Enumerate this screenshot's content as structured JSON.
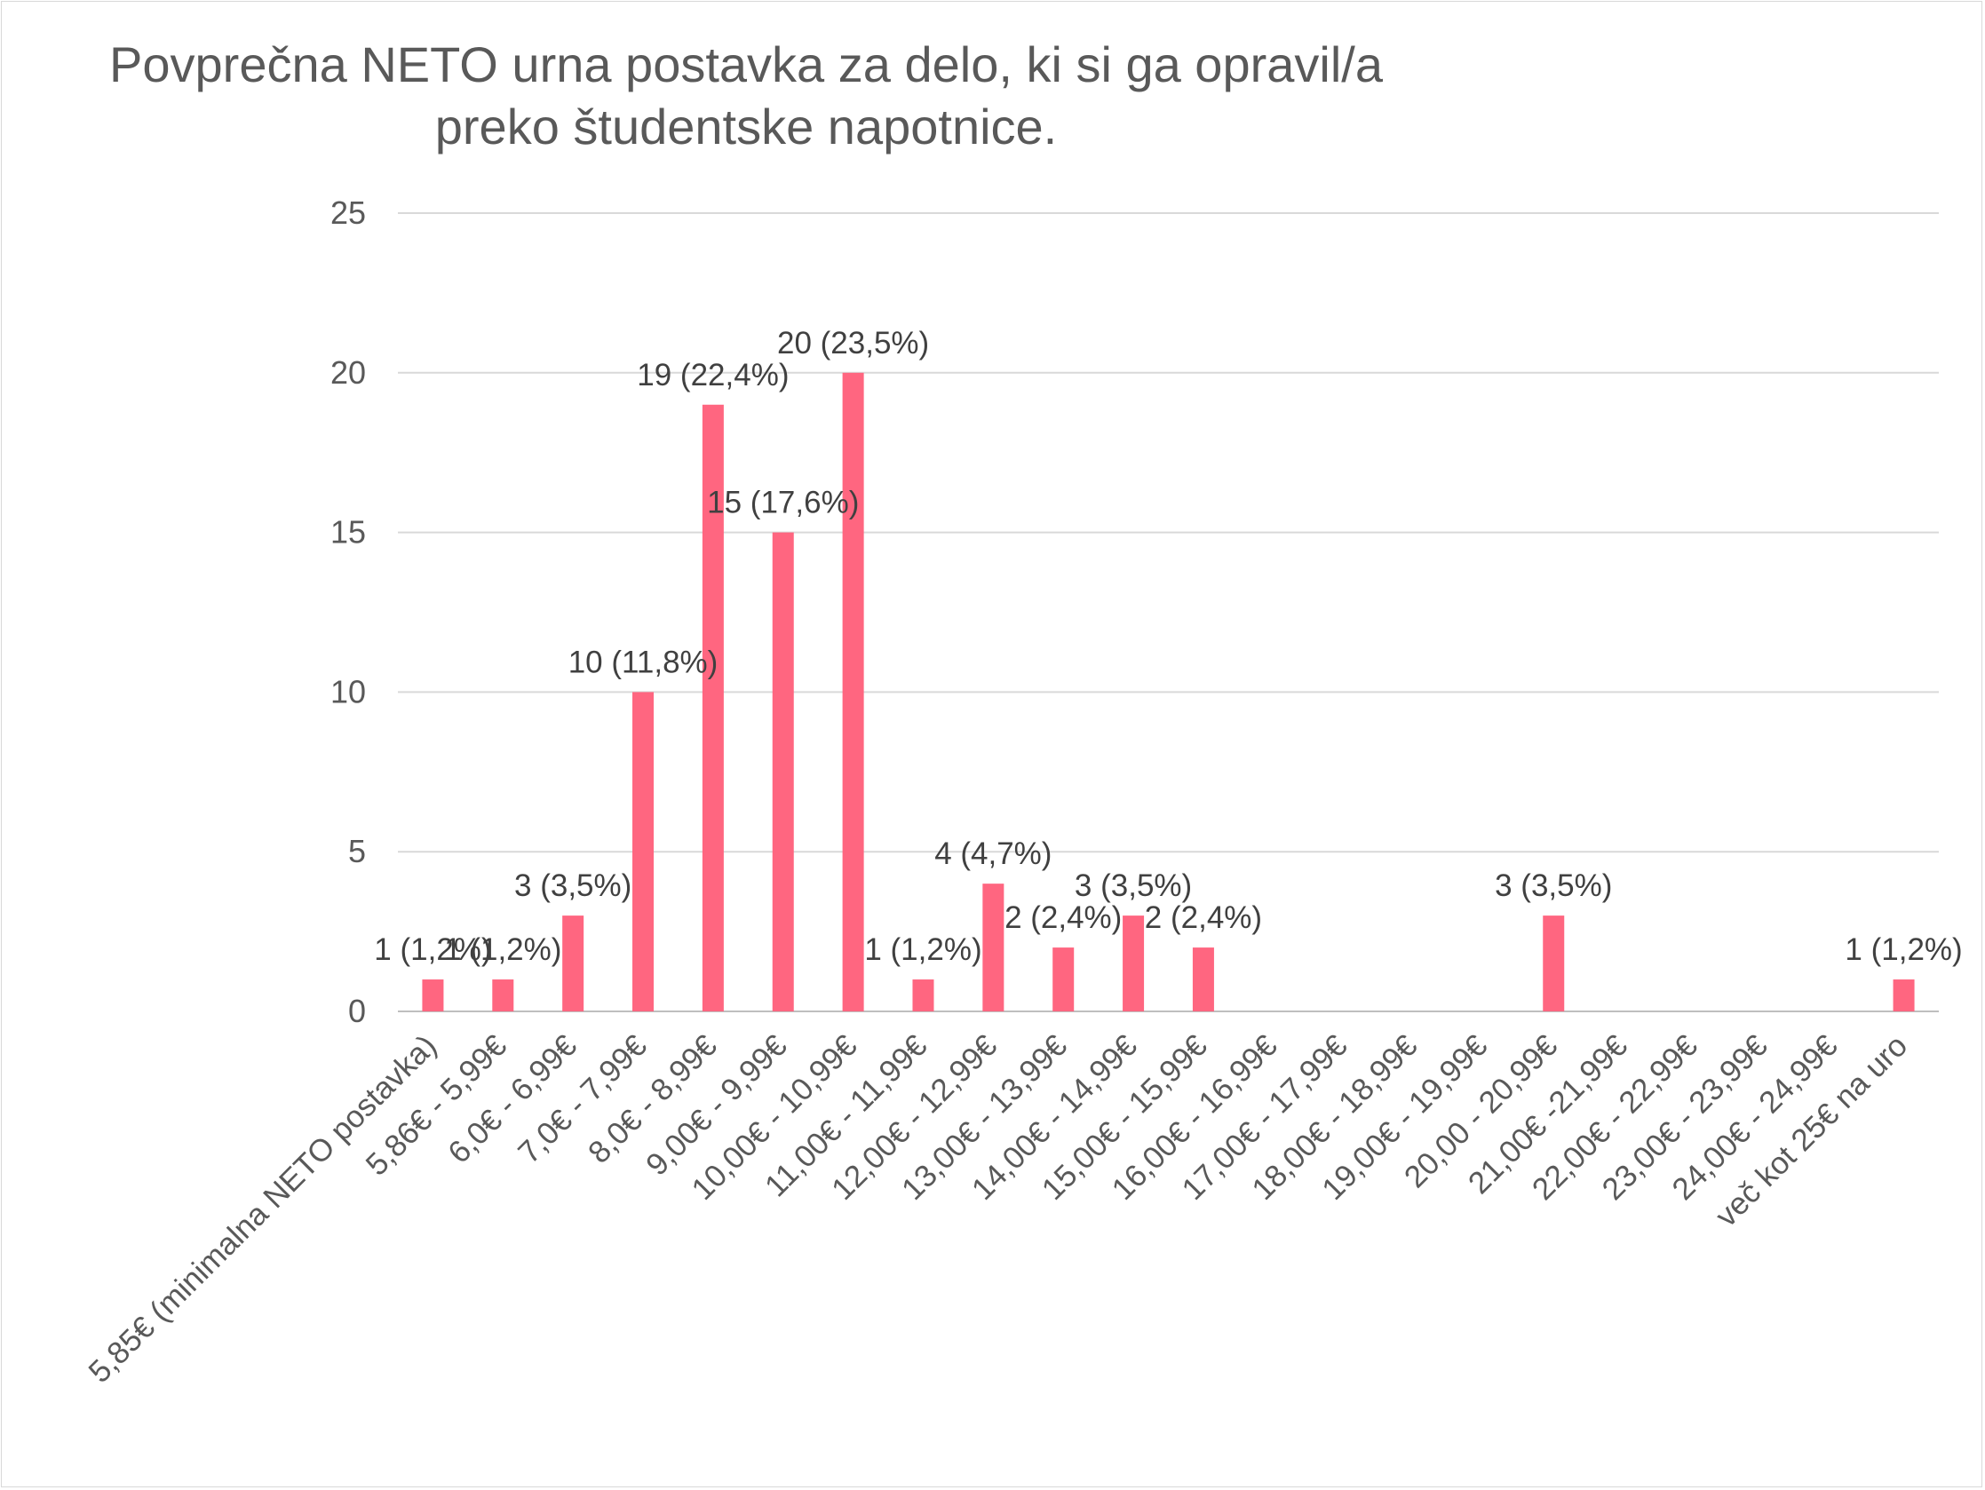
{
  "chart_data": {
    "type": "bar",
    "title_lines": [
      "Povprečna NETO urna postavka za delo, ki si ga opravil/a",
      "preko študentske napotnice."
    ],
    "xlabel": "",
    "ylabel": "",
    "ylim": [
      0,
      25
    ],
    "yticks": [
      0,
      5,
      10,
      15,
      20,
      25
    ],
    "grid": true,
    "legend": "none",
    "bar_color": "#ff6680",
    "categories": [
      "5,85€ (minimalna NETO postavka)",
      "5,86€ - 5,99€",
      "6,0€ - 6,99€",
      "7,0€ - 7,99€",
      "8,0€ - 8,99€",
      "9,00€ - 9,99€",
      "10,00€ - 10,99€",
      "11,00€ - 11,99€",
      "12,00€ - 12,99€",
      "13,00€ - 13,99€",
      "14,00€ - 14,99€",
      "15,00€ - 15,99€",
      "16,00€ - 16,99€",
      "17,00€ - 17,99€",
      "18,00€ - 18,99€",
      "19,00€ - 19,99€",
      "20,00 - 20,99€",
      "21,00€ -21,99€",
      "22,00€ - 22,99€",
      "23,00€ - 23,99€",
      "24,00€ - 24,99€",
      "več kot 25€ na uro"
    ],
    "values": [
      1,
      1,
      3,
      10,
      19,
      15,
      20,
      1,
      4,
      2,
      3,
      2,
      0,
      0,
      0,
      0,
      3,
      0,
      0,
      0,
      0,
      1
    ],
    "data_labels": [
      "1 (1,2%)",
      "1 (1,2%)",
      "3 (3,5%)",
      "10 (11,8%)",
      "19 (22,4%)",
      "15 (17,6%)",
      "20 (23,5%)",
      "1 (1,2%)",
      "4 (4,7%)",
      "2 (2,4%)",
      "3 (3,5%)",
      "2 (2,4%)",
      "",
      "",
      "",
      "",
      "3 (3,5%)",
      "",
      "",
      "",
      "",
      "1 (1,2%)"
    ]
  }
}
